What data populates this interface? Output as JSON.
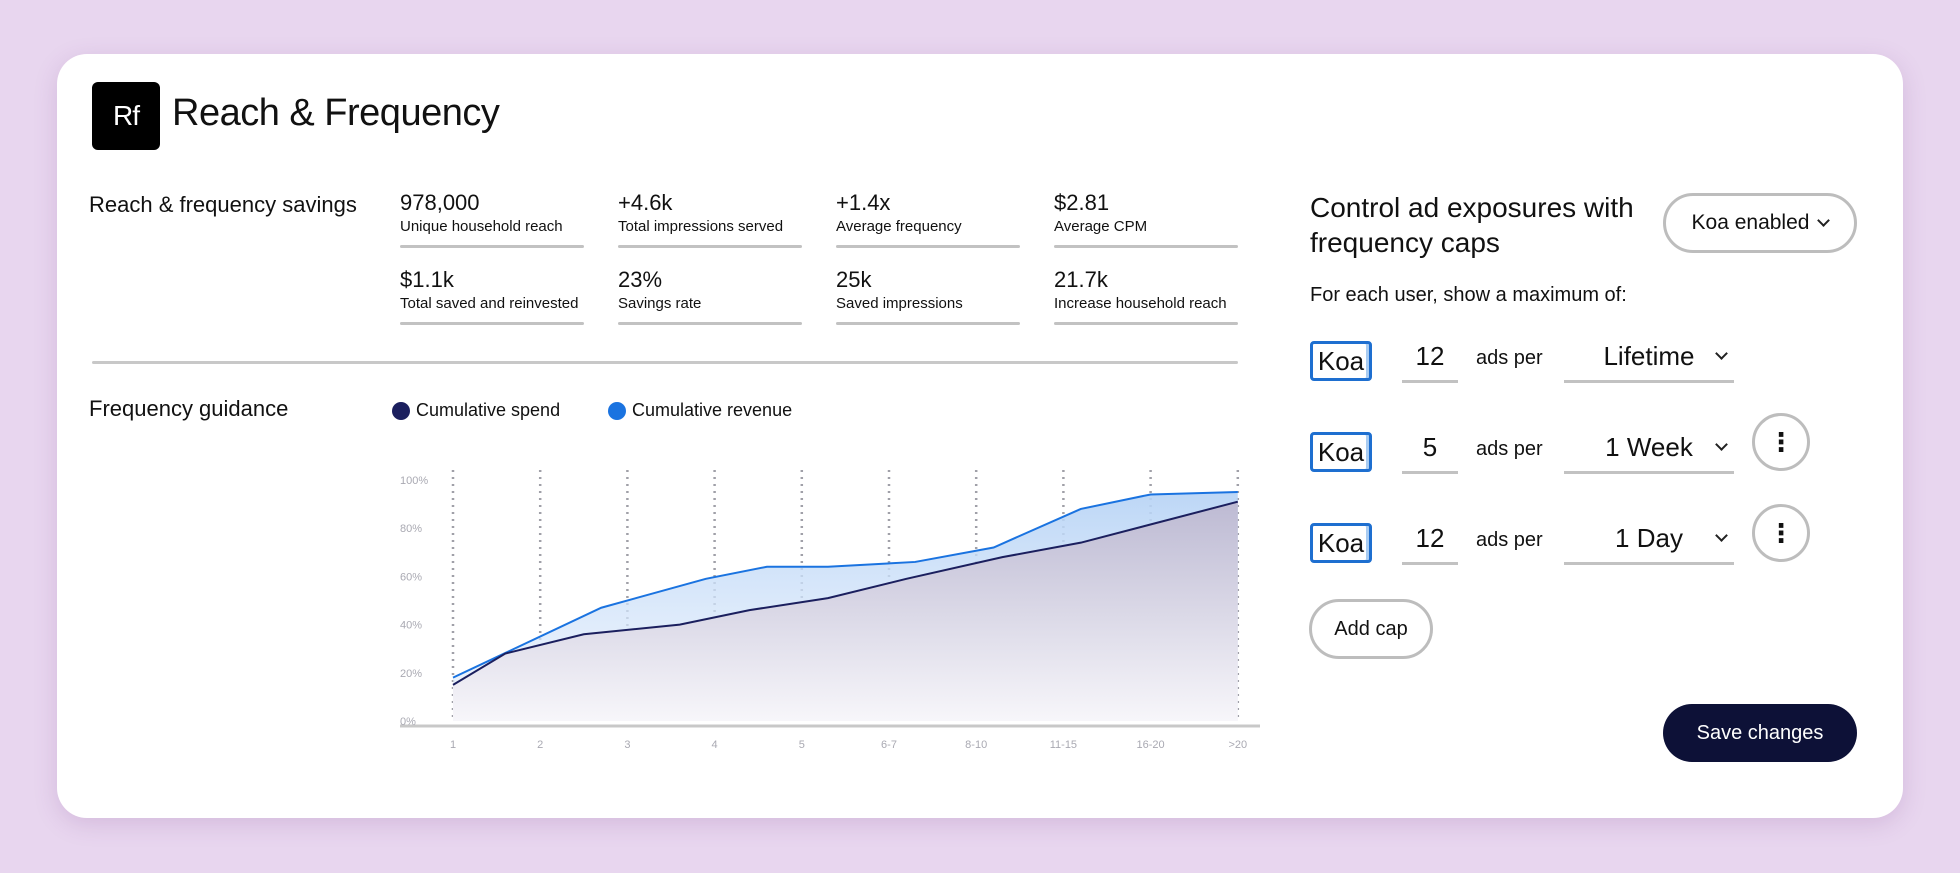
{
  "app": {
    "logo_text": "Rf",
    "title": "Reach & Frequency"
  },
  "savings": {
    "label": "Reach & frequency savings",
    "metrics": [
      {
        "value": "978,000",
        "label": "Unique household reach"
      },
      {
        "value": "+4.6k",
        "label": "Total impressions served"
      },
      {
        "value": "+1.4x",
        "label": "Average frequency"
      },
      {
        "value": "$2.81",
        "label": "Average CPM"
      },
      {
        "value": "$1.1k",
        "label": "Total saved and reinvested"
      },
      {
        "value": "23%",
        "label": "Savings rate"
      },
      {
        "value": "25k",
        "label": "Saved impressions"
      },
      {
        "value": "21.7k",
        "label": "Increase household reach"
      }
    ]
  },
  "guidance": {
    "label": "Frequency guidance",
    "legend": [
      {
        "name": "Cumulative spend",
        "color": "#1b1f5e"
      },
      {
        "name": "Cumulative revenue",
        "color": "#1a73e0"
      }
    ]
  },
  "chart_data": {
    "type": "area",
    "categories": [
      "1",
      "2",
      "3",
      "4",
      "5",
      "6-7",
      "8-10",
      "11-15",
      "16-20",
      ">20"
    ],
    "y_ticks": [
      "0%",
      "20%",
      "40%",
      "60%",
      "80%",
      "100%"
    ],
    "ylim": [
      0,
      100
    ],
    "grid": "vertical dotted",
    "series": [
      {
        "name": "Cumulative spend",
        "color": "#1b1f5e",
        "x": [
          1,
          1.6,
          2.5,
          3.6,
          4.4,
          5.3,
          6.2,
          7.3,
          8.2,
          10
        ],
        "values": [
          15,
          28,
          36,
          40,
          46,
          51,
          59,
          68,
          74,
          91
        ]
      },
      {
        "name": "Cumulative revenue",
        "color": "#1a73e0",
        "x": [
          1,
          2.7,
          3.9,
          4.6,
          5.3,
          6.3,
          7.2,
          8.2,
          9.0,
          10
        ],
        "values": [
          18,
          47,
          59,
          64,
          64,
          66,
          72,
          88,
          94,
          95
        ]
      }
    ]
  },
  "controls": {
    "title": "Control ad exposures with frequency caps",
    "enabled_select": "Koa enabled",
    "subtitle": "For each user, show a maximum of:",
    "caps": [
      {
        "tag": "Koa",
        "count": "12",
        "ads_per": "ads per",
        "period": "Lifetime",
        "has_menu": false
      },
      {
        "tag": "Koa",
        "count": "5",
        "ads_per": "ads per",
        "period": "1 Week",
        "has_menu": true
      },
      {
        "tag": "Koa",
        "count": "12",
        "ads_per": "ads per",
        "period": "1 Day",
        "has_menu": true
      }
    ],
    "add_cap_label": "Add cap",
    "save_label": "Save changes",
    "more_glyph": "⋮"
  }
}
